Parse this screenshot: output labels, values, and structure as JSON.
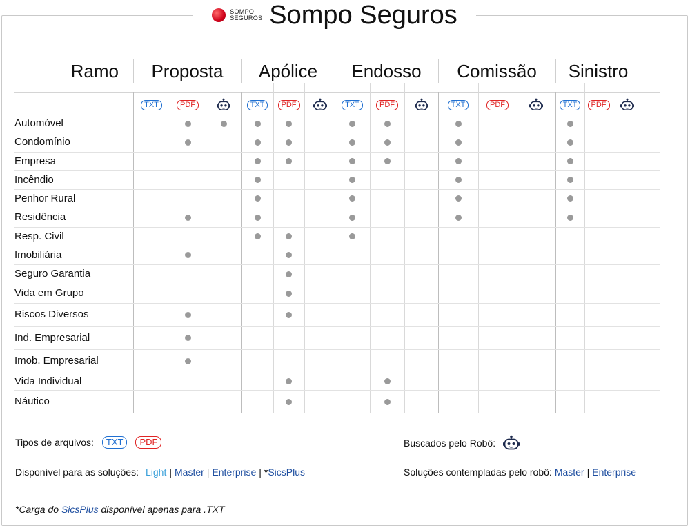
{
  "header": {
    "logo_line1": "SOMPO",
    "logo_line2": "SEGUROS",
    "title": "Sompo Seguros"
  },
  "table": {
    "ramo_label": "Ramo",
    "groups": [
      "Proposta",
      "Apólice",
      "Endosso",
      "Comissão",
      "Sinistro"
    ],
    "sub_columns": [
      "TXT",
      "PDF",
      "robot-icon"
    ],
    "rows": [
      {
        "label": "Automóvel",
        "marks": [
          0,
          1,
          1,
          1,
          1,
          0,
          1,
          1,
          0,
          1,
          0,
          0,
          1,
          0,
          0
        ]
      },
      {
        "label": "Condomínio",
        "marks": [
          0,
          1,
          0,
          1,
          1,
          0,
          1,
          1,
          0,
          1,
          0,
          0,
          1,
          0,
          0
        ]
      },
      {
        "label": "Empresa",
        "marks": [
          0,
          0,
          0,
          1,
          1,
          0,
          1,
          1,
          0,
          1,
          0,
          0,
          1,
          0,
          0
        ]
      },
      {
        "label": "Incêndio",
        "marks": [
          0,
          0,
          0,
          1,
          0,
          0,
          1,
          0,
          0,
          1,
          0,
          0,
          1,
          0,
          0
        ]
      },
      {
        "label": "Penhor Rural",
        "marks": [
          0,
          0,
          0,
          1,
          0,
          0,
          1,
          0,
          0,
          1,
          0,
          0,
          1,
          0,
          0
        ]
      },
      {
        "label": "Residência",
        "marks": [
          0,
          1,
          0,
          1,
          0,
          0,
          1,
          0,
          0,
          1,
          0,
          0,
          1,
          0,
          0
        ]
      },
      {
        "label": "Resp. Civil",
        "marks": [
          0,
          0,
          0,
          1,
          1,
          0,
          1,
          0,
          0,
          0,
          0,
          0,
          0,
          0,
          0
        ]
      },
      {
        "label": "Imobiliária",
        "marks": [
          0,
          1,
          0,
          0,
          1,
          0,
          0,
          0,
          0,
          0,
          0,
          0,
          0,
          0,
          0
        ]
      },
      {
        "label": "Seguro Garantia",
        "marks": [
          0,
          0,
          0,
          0,
          1,
          0,
          0,
          0,
          0,
          0,
          0,
          0,
          0,
          0,
          0
        ]
      },
      {
        "label": "Vida em Grupo",
        "marks": [
          0,
          0,
          0,
          0,
          1,
          0,
          0,
          0,
          0,
          0,
          0,
          0,
          0,
          0,
          0
        ]
      },
      {
        "label": "Riscos Diversos",
        "marks": [
          0,
          1,
          0,
          0,
          1,
          0,
          0,
          0,
          0,
          0,
          0,
          0,
          0,
          0,
          0
        ]
      },
      {
        "label": "Ind. Empresarial",
        "marks": [
          0,
          1,
          0,
          0,
          0,
          0,
          0,
          0,
          0,
          0,
          0,
          0,
          0,
          0,
          0
        ]
      },
      {
        "label": "Imob. Empresarial",
        "marks": [
          0,
          1,
          0,
          0,
          0,
          0,
          0,
          0,
          0,
          0,
          0,
          0,
          0,
          0,
          0
        ]
      },
      {
        "label": "Vida Individual",
        "marks": [
          0,
          0,
          0,
          0,
          1,
          0,
          0,
          1,
          0,
          0,
          0,
          0,
          0,
          0,
          0
        ]
      },
      {
        "label": "Náutico",
        "marks": [
          0,
          0,
          0,
          0,
          1,
          0,
          0,
          1,
          0,
          0,
          0,
          0,
          0,
          0,
          0
        ]
      }
    ]
  },
  "legend": {
    "file_types_label": "Tipos de arquivos:",
    "txt_badge": "TXT",
    "pdf_badge": "PDF",
    "robot_label": "Buscados pelo Robô:",
    "solutions_label": "Disponível para as soluções:",
    "solutions": [
      "Light",
      "Master",
      "Enterprise"
    ],
    "sicsplus_prefix": "*",
    "sicsplus": "SicsPlus",
    "robot_solutions_label": "Soluções contempladas pelo robô:",
    "robot_solutions": [
      "Master",
      "Enterprise"
    ],
    "separator": "|"
  },
  "footnote": {
    "prefix": "*Carga do ",
    "highlight": "SicsPlus",
    "suffix": " disponível apenas para .TXT"
  },
  "colors": {
    "txt": "#1f6fd1",
    "pdf": "#e02424",
    "dot": "#9a9a9a",
    "brand_red": "#d0021b"
  }
}
